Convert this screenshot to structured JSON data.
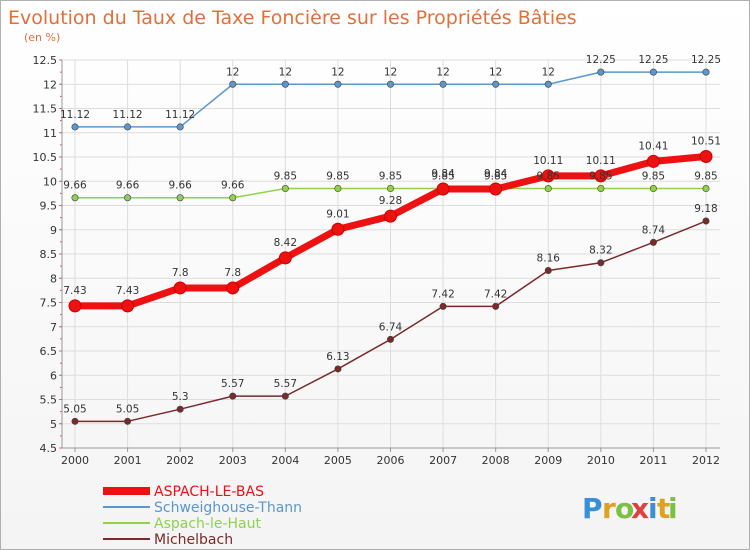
{
  "chart_data": {
    "type": "line",
    "title": "Evolution du Taux de Taxe Foncière sur les Propriétés Bâties",
    "subtitle": "(en %)",
    "xlabel": "",
    "ylabel": "",
    "ylim": [
      4.5,
      12.5
    ],
    "yticks": [
      "4.5",
      "5",
      "5.5",
      "6",
      "6.5",
      "7",
      "7.5",
      "8",
      "8.5",
      "9",
      "9.5",
      "10",
      "10.5",
      "11",
      "11.5",
      "12",
      "12.5"
    ],
    "categories": [
      "2000",
      "2001",
      "2002",
      "2003",
      "2004",
      "2005",
      "2006",
      "2007",
      "2008",
      "2009",
      "2010",
      "2011",
      "2012"
    ],
    "series": [
      {
        "name": "Schweighouse-Thann",
        "color": "#5b97cc",
        "values": [
          11.12,
          11.12,
          11.12,
          12,
          12,
          12,
          12,
          12,
          12,
          12,
          12.25,
          12.25,
          12.25
        ],
        "labels": [
          "11.12",
          "11.12",
          "11.12",
          "12",
          "12",
          "12",
          "12",
          "12",
          "12",
          "12",
          "12.25",
          "12.25",
          "12.25"
        ]
      },
      {
        "name": "Aspach-le-Haut",
        "color": "#8fd14f",
        "values": [
          9.66,
          9.66,
          9.66,
          9.66,
          9.85,
          9.85,
          9.85,
          9.85,
          9.85,
          9.85,
          9.85,
          9.85,
          9.85
        ],
        "labels": [
          "9.66",
          "9.66",
          "9.66",
          "9.66",
          "9.85",
          "9.85",
          "9.85",
          "9.85",
          "9.85",
          "9.85",
          "9.85",
          "9.85",
          "9.85"
        ]
      },
      {
        "name": "Michelbach",
        "color": "#7a2a2a",
        "values": [
          5.05,
          5.05,
          5.3,
          5.57,
          5.57,
          6.13,
          6.74,
          7.42,
          7.42,
          8.16,
          8.32,
          8.74,
          9.18
        ],
        "labels": [
          "5.05",
          "5.05",
          "5.3",
          "5.57",
          "5.57",
          "6.13",
          "6.74",
          "7.42",
          "7.42",
          "8.16",
          "8.32",
          "8.74",
          "9.18"
        ]
      },
      {
        "name": "ASPACH-LE-BAS",
        "color": "#ee1111",
        "values": [
          7.43,
          7.43,
          7.8,
          7.8,
          8.42,
          9.01,
          9.28,
          9.84,
          9.84,
          10.11,
          10.11,
          10.41,
          10.51
        ],
        "labels": [
          "7.43",
          "7.43",
          "7.8",
          "7.8",
          "8.42",
          "9.01",
          "9.28",
          "9.84",
          "9.84",
          "10.11",
          "10.11",
          "10.41",
          "10.51"
        ]
      }
    ],
    "legend": [
      {
        "name": "ASPACH-LE-BAS",
        "color": "#ee1111"
      },
      {
        "name": "Schweighouse-Thann",
        "color": "#5b97cc"
      },
      {
        "name": "Aspach-le-Haut",
        "color": "#8fd14f"
      },
      {
        "name": "Michelbach",
        "color": "#7a2a2a"
      }
    ],
    "legend_position": "bottom-left",
    "grid": true
  },
  "brand": {
    "letters": [
      "P",
      "r",
      "o",
      "x",
      "i",
      "t",
      "i"
    ],
    "colors": [
      "#3a8fd6",
      "#e0a020",
      "#7ac143",
      "#e04040",
      "#3a8fd6",
      "#e0a020",
      "#7ac143"
    ]
  }
}
